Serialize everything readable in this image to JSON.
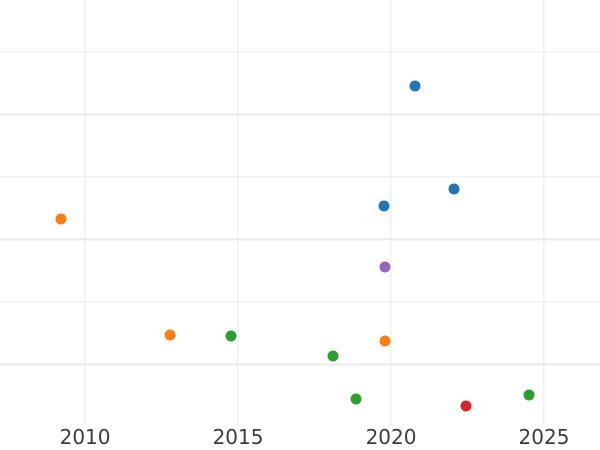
{
  "chart_data": {
    "type": "scatter",
    "title": "",
    "xlabel": "",
    "ylabel": "",
    "grid": true,
    "legend": "none",
    "y_axis_tick_labels_visible": false,
    "x_ticks": [
      2010,
      2015,
      2020,
      2025
    ],
    "x_tick_labels": [
      "2010",
      "2015",
      "2020",
      "2025"
    ],
    "xlim": [
      2007.22,
      2026.83
    ],
    "ylim": [
      0.03,
      6.83
    ],
    "y_gridline_values": [
      1,
      2,
      3,
      4,
      5,
      6
    ],
    "marker_diameter_px": 11,
    "points": [
      {
        "x": 2009.22,
        "y": 3.32,
        "color_name": "orange",
        "color": "#ff7f0e"
      },
      {
        "x": 2012.78,
        "y": 1.47,
        "color_name": "orange",
        "color": "#ff7f0e"
      },
      {
        "x": 2014.77,
        "y": 1.46,
        "color_name": "green",
        "color": "#2ca02c"
      },
      {
        "x": 2018.1,
        "y": 1.14,
        "color_name": "green",
        "color": "#2ca02c"
      },
      {
        "x": 2018.86,
        "y": 0.45,
        "color_name": "green",
        "color": "#2ca02c"
      },
      {
        "x": 2019.77,
        "y": 3.54,
        "color_name": "blue",
        "color": "#1f77b4"
      },
      {
        "x": 2019.8,
        "y": 2.56,
        "color_name": "purple",
        "color": "#9467bd"
      },
      {
        "x": 2019.8,
        "y": 1.38,
        "color_name": "orange",
        "color": "#ff7f0e"
      },
      {
        "x": 2020.78,
        "y": 5.46,
        "color_name": "blue",
        "color": "#1f77b4"
      },
      {
        "x": 2022.06,
        "y": 3.81,
        "color_name": "blue",
        "color": "#1f77b4"
      },
      {
        "x": 2022.45,
        "y": 0.34,
        "color_name": "red",
        "color": "#d62728"
      },
      {
        "x": 2024.51,
        "y": 0.51,
        "color_name": "green",
        "color": "#2ca02c"
      }
    ]
  },
  "style": {
    "background_color": "#ffffff",
    "grid_color": "#e9e9e9",
    "tick_label_color": "#3d3d3d",
    "palette": {
      "blue": "#1f77b4",
      "orange": "#ff7f0e",
      "green": "#2ca02c",
      "red": "#d62728",
      "purple": "#9467bd"
    }
  }
}
